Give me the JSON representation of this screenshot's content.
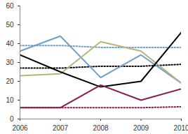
{
  "chart_data": {
    "type": "line",
    "x": [
      2006,
      2007,
      2008,
      2009,
      2010
    ],
    "xlim": [
      2006,
      2010
    ],
    "xticks": [
      2006,
      2007,
      2008,
      2009,
      2010
    ],
    "ylim": [
      0,
      60
    ],
    "yticks": [
      0,
      10,
      20,
      30,
      40,
      50,
      60
    ],
    "grid": false,
    "series": [
      {
        "color": "#6f9fc9",
        "line_style": "dotted",
        "values": [
          39,
          39,
          38,
          38,
          38
        ]
      },
      {
        "color": "#000000",
        "line_style": "dotted",
        "values": [
          27,
          27,
          28,
          28,
          29
        ]
      },
      {
        "color": "#8b1a4a",
        "line_style": "dotted",
        "values": [
          6,
          6,
          6,
          6,
          6.5
        ]
      },
      {
        "color": "#6f9fc9",
        "line_style": "solid",
        "values": [
          36,
          44,
          22,
          34,
          19
        ]
      },
      {
        "color": "#b8b37c",
        "line_style": "solid",
        "values": [
          23,
          24,
          41,
          36,
          19
        ]
      },
      {
        "color": "#000000",
        "line_style": "solid",
        "values": [
          34,
          25,
          17,
          20,
          46
        ]
      },
      {
        "color": "#8b1a4a",
        "line_style": "solid",
        "values": [
          6,
          6,
          18,
          10,
          16
        ]
      }
    ]
  }
}
